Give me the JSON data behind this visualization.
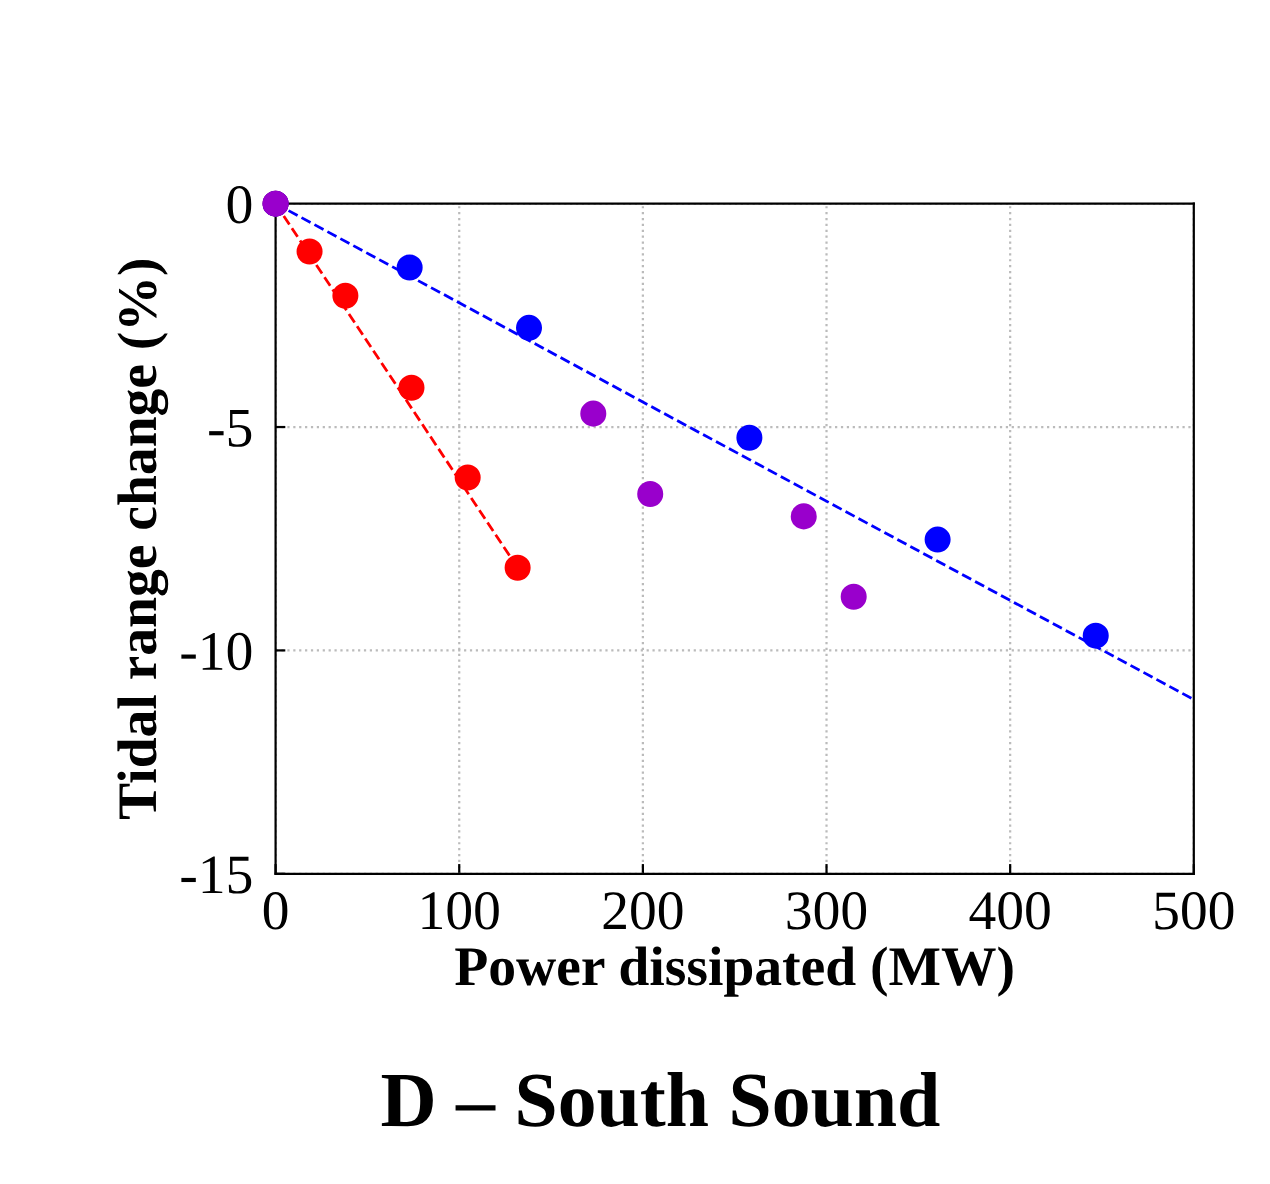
{
  "chart_data": {
    "type": "scatter",
    "title": "D – South Sound",
    "xlabel": "Power dissipated (MW)",
    "ylabel": "Tidal range change (%)",
    "xlim": [
      0,
      500
    ],
    "ylim": [
      -15,
      0
    ],
    "xticks": [
      0,
      100,
      200,
      300,
      400,
      500
    ],
    "yticks": [
      -15,
      -10,
      -5,
      0
    ],
    "grid": true,
    "marker": "circle",
    "series": [
      {
        "type": "line",
        "marker": "none",
        "line_style": "dashed",
        "color": "#ff0000",
        "x": [
          0,
          131.8
        ],
        "values": [
          0,
          -8.15
        ]
      },
      {
        "type": "line",
        "marker": "none",
        "line_style": "dashed",
        "color": "#0000ff",
        "x": [
          0,
          500
        ],
        "values": [
          0,
          -11.1
        ]
      },
      {
        "color": "#ff0000",
        "x": [
          0,
          18.5,
          38,
          74,
          104.6,
          131.8
        ],
        "values": [
          0,
          -1.07,
          -2.06,
          -4.12,
          -6.13,
          -8.15
        ]
      },
      {
        "color": "#0000ff",
        "x": [
          0,
          73,
          138,
          258,
          360.5,
          446.6
        ],
        "values": [
          0,
          -1.43,
          -2.78,
          -5.24,
          -7.52,
          -9.67
        ]
      },
      {
        "color": "#9900cc",
        "x": [
          0,
          173,
          204,
          287.6,
          314.8
        ],
        "values": [
          0,
          -4.7,
          -6.5,
          -7.0,
          -8.8
        ]
      }
    ]
  }
}
